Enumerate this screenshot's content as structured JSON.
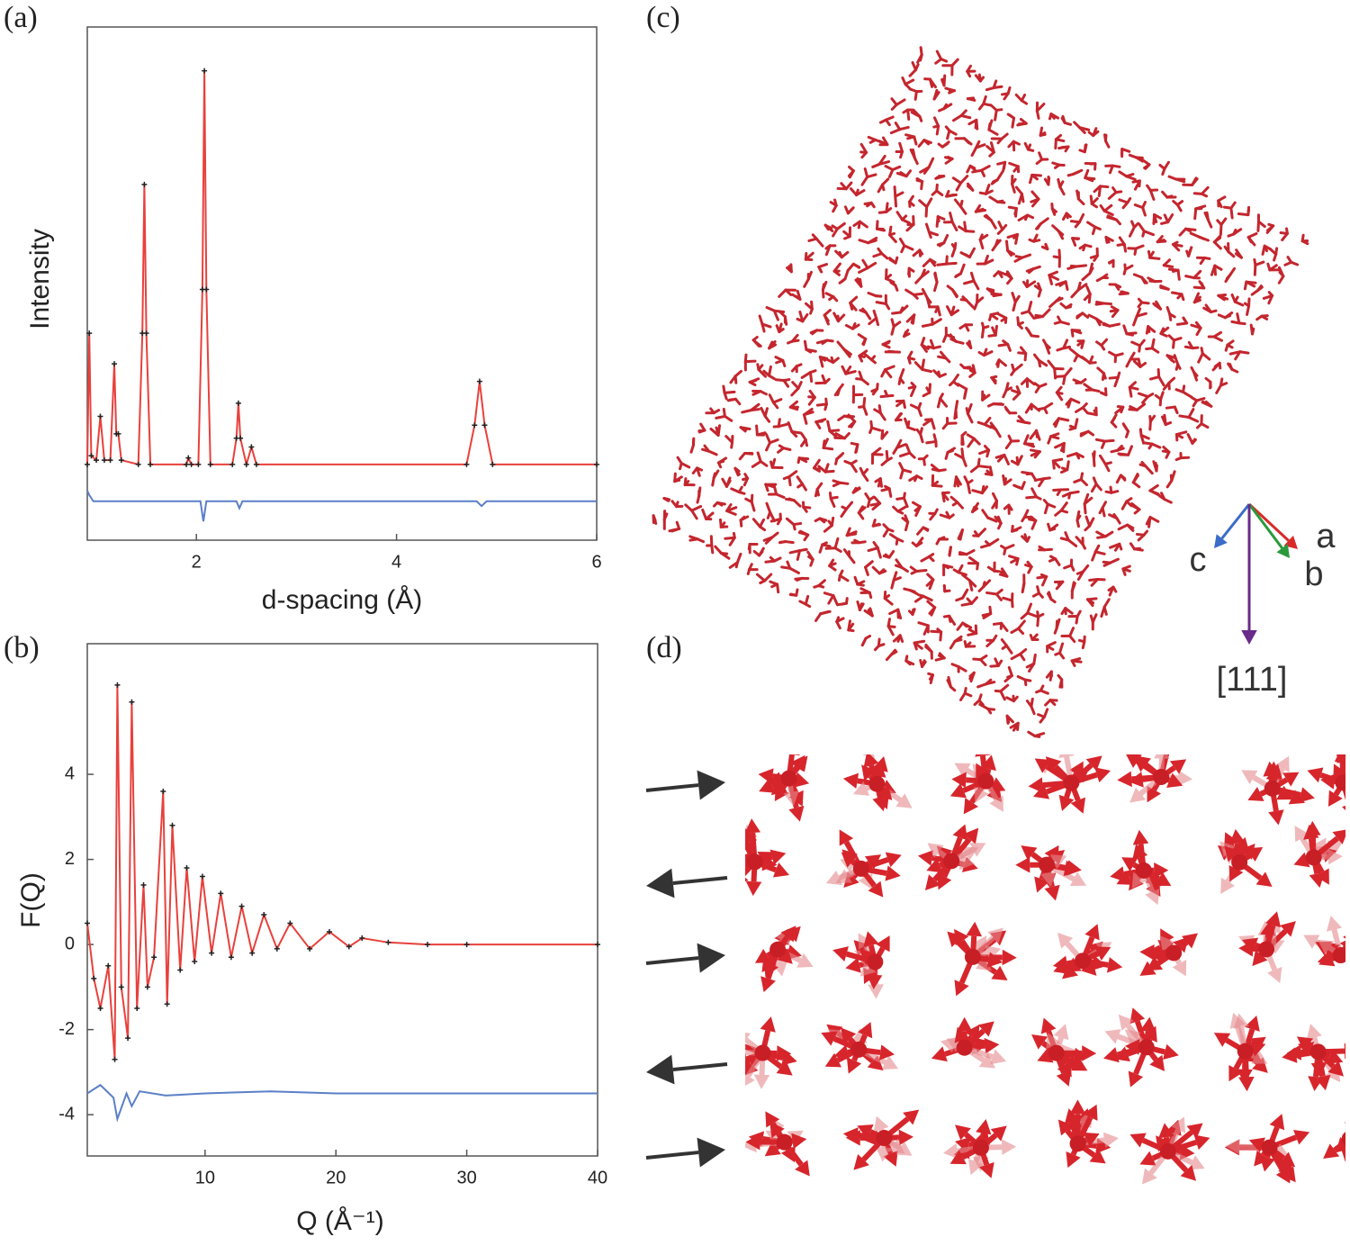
{
  "chart_data": [
    {
      "type": "line",
      "label": "(a)",
      "xlabel": "d-spacing (Å)",
      "ylabel": "Intensity",
      "xlim": [
        0.91,
        6
      ],
      "xticks": [
        2,
        4,
        6
      ],
      "ylim": [
        -17.3,
        100
      ],
      "series": [
        {
          "color": "#e8413c",
          "marker_color": "#222222",
          "x": [
            0.91,
            0.93,
            0.95,
            1.0,
            1.04,
            1.08,
            1.14,
            1.18,
            1.2,
            1.22,
            1.25,
            1.42,
            1.46,
            1.48,
            1.5,
            1.54,
            1.9,
            1.92,
            1.95,
            2.02,
            2.06,
            2.08,
            2.1,
            2.14,
            2.36,
            2.4,
            2.42,
            2.44,
            2.5,
            2.55,
            2.6,
            4.7,
            4.78,
            4.83,
            4.88,
            4.96,
            6.0
          ],
          "values": [
            0,
            30,
            2,
            1,
            11,
            1,
            1,
            23,
            7,
            7,
            1,
            0,
            30,
            64,
            30,
            0,
            0,
            1.5,
            0,
            0,
            40,
            90,
            40,
            0,
            0,
            6,
            14,
            6,
            0,
            4,
            0,
            0,
            9,
            19,
            9,
            0,
            0
          ]
        },
        {
          "color": "#5b7fc7",
          "x": [
            0.91,
            0.93,
            0.97,
            1.5,
            2.04,
            2.07,
            2.1,
            2.4,
            2.43,
            2.46,
            4.8,
            4.85,
            4.9,
            6.0
          ],
          "values": [
            -6,
            -7,
            -8.4,
            -8.4,
            -8.4,
            -13,
            -8.4,
            -8.4,
            -10,
            -8.4,
            -8.4,
            -9.5,
            -8.4,
            -8.4
          ]
        }
      ]
    },
    {
      "type": "line",
      "label": "(b)",
      "xlabel": "Q (Å⁻¹)",
      "ylabel": "F(Q)",
      "xlim": [
        1,
        40
      ],
      "xticks": [
        10,
        20,
        30,
        40
      ],
      "ylim": [
        -4.97,
        7.07
      ],
      "yticks": [
        -4,
        -2,
        0,
        2,
        4
      ],
      "series": [
        {
          "color": "#e8413c",
          "marker_color": "#222222",
          "x": [
            1,
            1.5,
            2,
            2.6,
            3.1,
            3.3,
            3.6,
            4.1,
            4.4,
            4.8,
            5.3,
            5.6,
            6.1,
            6.8,
            7.1,
            7.5,
            8.1,
            8.6,
            9.2,
            9.8,
            10.5,
            11.2,
            12,
            12.8,
            13.6,
            14.5,
            15.5,
            16.5,
            18,
            19.5,
            21,
            22,
            24,
            27,
            30,
            40
          ],
          "values": [
            0.5,
            -0.8,
            -1.5,
            -0.5,
            -2.7,
            6.1,
            -1,
            -2.2,
            5.7,
            -1.5,
            1.4,
            -1,
            -0.3,
            3.6,
            -1.4,
            2.8,
            -0.6,
            1.8,
            -0.4,
            1.6,
            -0.2,
            1.2,
            -0.3,
            0.9,
            -0.2,
            0.7,
            -0.1,
            0.5,
            -0.1,
            0.3,
            -0.05,
            0.15,
            0.05,
            0,
            0,
            0
          ]
        },
        {
          "color": "#5b7fc7",
          "x": [
            1,
            2,
            3,
            3.3,
            4,
            4.4,
            5,
            7,
            10,
            15,
            20,
            40
          ],
          "values": [
            -3.5,
            -3.3,
            -3.6,
            -4.1,
            -3.5,
            -3.8,
            -3.45,
            -3.55,
            -3.5,
            -3.45,
            -3.5,
            -3.5
          ]
        }
      ]
    }
  ],
  "images": [
    {
      "label": "(c)",
      "axis_labels": [
        "c",
        "a",
        "b",
        "[111]"
      ]
    },
    {
      "label": "(d)"
    }
  ]
}
